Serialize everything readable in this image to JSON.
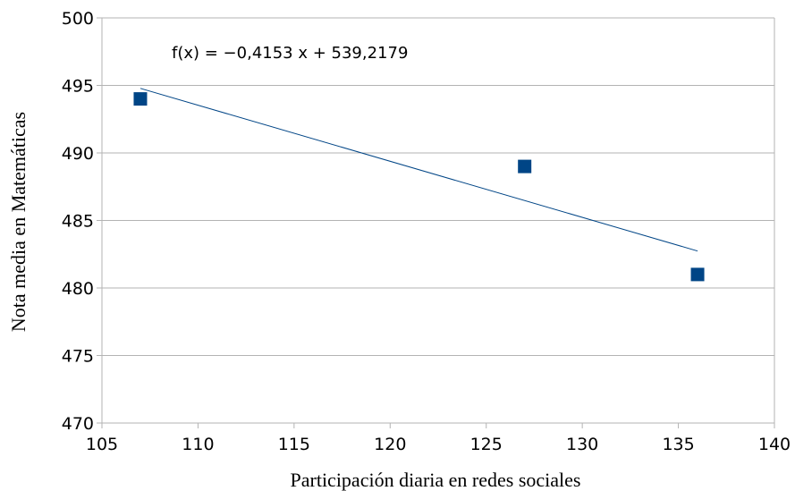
{
  "chart_data": {
    "type": "scatter",
    "title": "",
    "xlabel": "Participación diaria en redes sociales",
    "ylabel": "Nota media en Matemáticas",
    "xlim": [
      105,
      140
    ],
    "ylim": [
      470,
      500
    ],
    "xticks": [
      105,
      110,
      115,
      120,
      125,
      130,
      135,
      140
    ],
    "yticks": [
      470,
      475,
      480,
      485,
      490,
      495,
      500
    ],
    "grid": true,
    "series": [
      {
        "points": [
          {
            "x": 107,
            "y": 494
          },
          {
            "x": 127,
            "y": 489
          },
          {
            "x": 136,
            "y": 481
          }
        ],
        "marker": "square",
        "color": "#004586"
      }
    ],
    "trendline": {
      "slope": -0.4153,
      "intercept": 539.2179,
      "x_range": [
        107,
        136
      ],
      "color": "#004586",
      "equation": "f(x) = −0,4153 x + 539,2179"
    }
  }
}
